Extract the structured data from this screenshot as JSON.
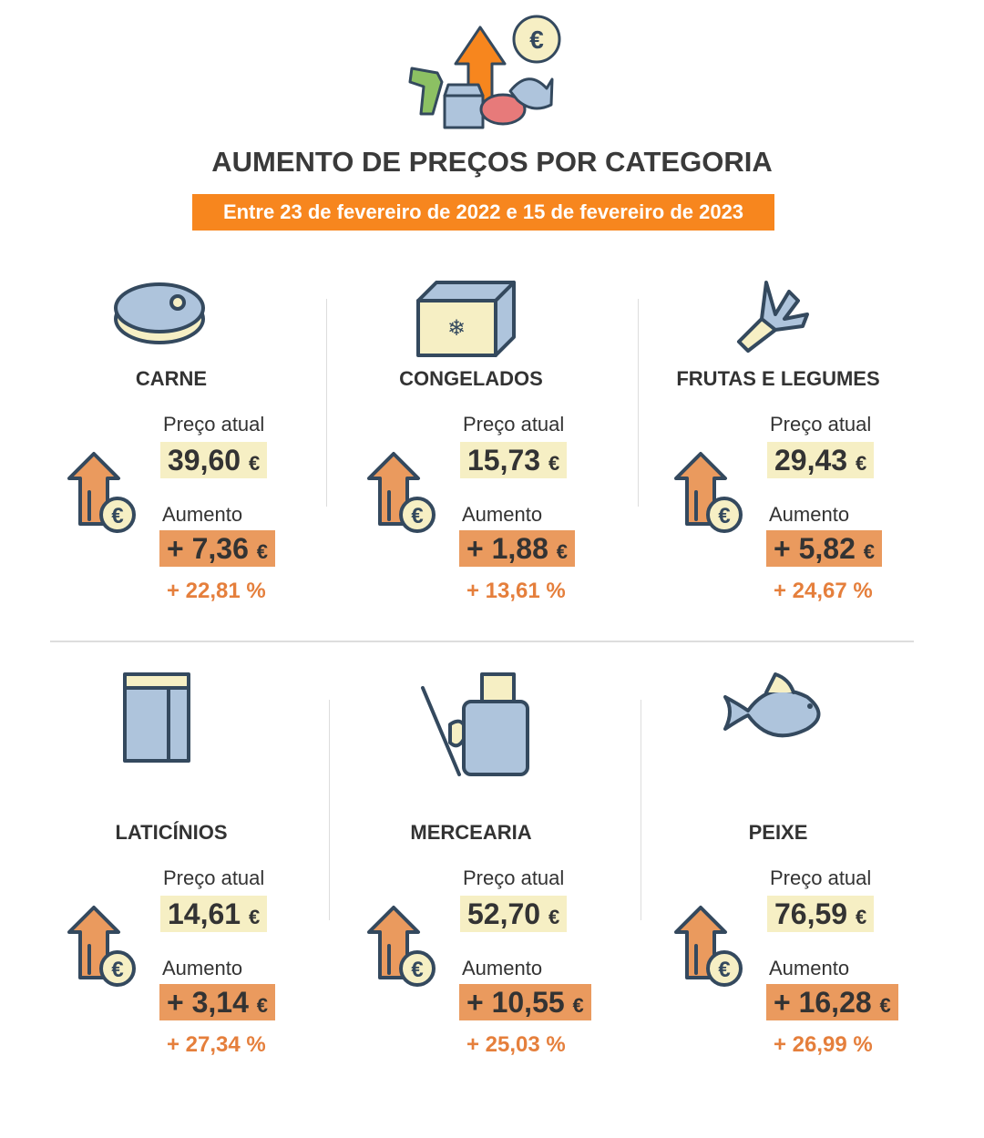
{
  "header": {
    "title": "AUMENTO DE PREÇOS POR CATEGORIA",
    "subtitle": "Entre 23 de fevereiro de 2022 e 15 de fevereiro de 2023"
  },
  "categories": [
    {
      "name": "CARNE",
      "price_label": "Preço atual",
      "price": {
        "amount": "39,60",
        "unit": "€"
      },
      "increase_label": "Aumento",
      "increase": {
        "amount": "+ 7,36",
        "unit": "€"
      },
      "percent": "+ 22,81 %"
    },
    {
      "name": "CONGELADOS",
      "price_label": "Preço atual",
      "price": {
        "amount": "15,73",
        "unit": "€"
      },
      "increase_label": "Aumento",
      "increase": {
        "amount": "+ 1,88",
        "unit": "€"
      },
      "percent": "+ 13,61 %"
    },
    {
      "name": "FRUTAS E LEGUMES",
      "price_label": "Preço atual",
      "price": {
        "amount": "29,43",
        "unit": "€"
      },
      "increase_label": "Aumento",
      "increase": {
        "amount": "+ 5,82",
        "unit": "€"
      },
      "percent": "+ 24,67 %"
    },
    {
      "name": "LATICÍNIOS",
      "price_label": "Preço atual",
      "price": {
        "amount": "14,61",
        "unit": "€"
      },
      "increase_label": "Aumento",
      "increase": {
        "amount": "+ 3,14",
        "unit": "€"
      },
      "percent": "+ 27,34 %"
    },
    {
      "name": "MERCEARIA",
      "price_label": "Preço atual",
      "price": {
        "amount": "52,70",
        "unit": "€"
      },
      "increase_label": "Aumento",
      "increase": {
        "amount": "+ 10,55",
        "unit": "€"
      },
      "percent": "+ 25,03 %"
    },
    {
      "name": "PEIXE",
      "price_label": "Preço atual",
      "price": {
        "amount": "76,59",
        "unit": "€"
      },
      "increase_label": "Aumento",
      "increase": {
        "amount": "+ 16,28",
        "unit": "€"
      },
      "percent": "+ 26,99 %"
    }
  ]
}
